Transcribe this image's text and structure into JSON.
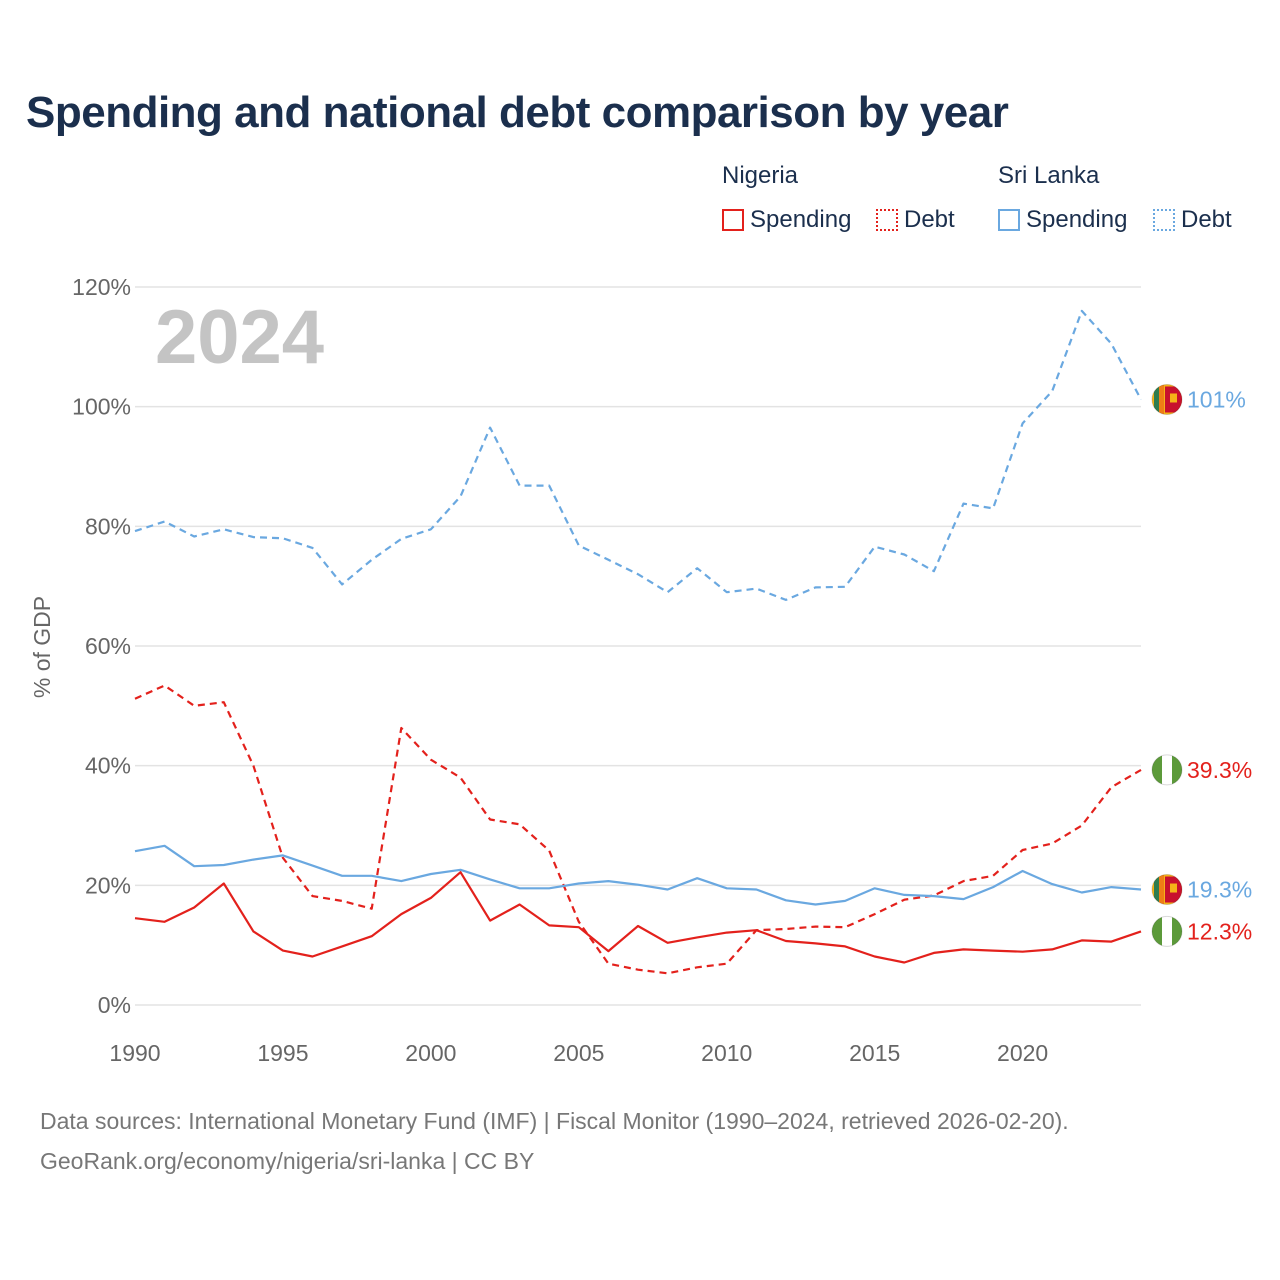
{
  "chart_data": {
    "type": "line",
    "title": "Spending and national debt comparison by year",
    "year_badge": "2024",
    "ylabel": "% of GDP",
    "xlabel": "",
    "xlim": [
      1990,
      2024
    ],
    "ylim": [
      0,
      120
    ],
    "x_ticks": [
      1990,
      1995,
      2000,
      2005,
      2010,
      2015,
      2020
    ],
    "y_ticks": [
      0,
      20,
      40,
      60,
      80,
      100,
      120
    ],
    "y_tick_labels": [
      "0%",
      "20%",
      "40%",
      "60%",
      "80%",
      "100%",
      "120%"
    ],
    "grid": true,
    "legend": {
      "groups": [
        {
          "title": "Nigeria",
          "items": [
            {
              "label": "Spending",
              "style": "solid"
            },
            {
              "label": "Debt",
              "style": "dotted"
            }
          ]
        },
        {
          "title": "Sri Lanka",
          "items": [
            {
              "label": "Spending",
              "style": "solid"
            },
            {
              "label": "Debt",
              "style": "dotted"
            }
          ]
        }
      ]
    },
    "x": [
      1990,
      1991,
      1992,
      1993,
      1994,
      1995,
      1996,
      1997,
      1998,
      1999,
      2000,
      2001,
      2002,
      2003,
      2004,
      2005,
      2006,
      2007,
      2008,
      2009,
      2010,
      2011,
      2012,
      2013,
      2014,
      2015,
      2016,
      2017,
      2018,
      2019,
      2020,
      2021,
      2022,
      2023,
      2024
    ],
    "series": [
      {
        "id": "sl-debt",
        "country": "Sri Lanka",
        "name": "Debt",
        "dash": true,
        "color": "#6aa8e0",
        "end_label": "101%",
        "flag": "sri-lanka",
        "values": [
          79.2,
          80.8,
          78.3,
          79.5,
          78.2,
          78.0,
          76.4,
          70.3,
          74.4,
          77.9,
          79.5,
          85.0,
          96.5,
          86.8,
          86.8,
          76.8,
          74.4,
          72.0,
          69.0,
          73.0,
          69.0,
          69.6,
          67.7,
          69.8,
          69.9,
          76.6,
          75.3,
          72.5,
          83.8,
          83.0,
          97.2,
          102.6,
          116.0,
          110.5,
          101.2
        ]
      },
      {
        "id": "ng-debt",
        "country": "Nigeria",
        "name": "Debt",
        "dash": true,
        "color": "#e3211c",
        "end_label": "39.3%",
        "flag": "nigeria",
        "values": [
          51.2,
          53.4,
          50.0,
          50.6,
          40.0,
          24.6,
          18.2,
          17.4,
          16.1,
          46.3,
          41.0,
          38.0,
          31.0,
          30.2,
          25.8,
          13.9,
          6.9,
          5.9,
          5.3,
          6.3,
          6.9,
          12.5,
          12.7,
          13.1,
          13.0,
          15.2,
          17.6,
          18.3,
          20.7,
          21.6,
          25.9,
          27.0,
          30.0,
          36.4,
          39.3
        ]
      },
      {
        "id": "sl-spending",
        "country": "Sri Lanka",
        "name": "Spending",
        "dash": false,
        "color": "#6aa8e0",
        "end_label": "19.3%",
        "flag": "sri-lanka",
        "values": [
          25.7,
          26.6,
          23.2,
          23.4,
          24.3,
          25.0,
          23.3,
          21.6,
          21.6,
          20.7,
          21.9,
          22.6,
          21.0,
          19.5,
          19.5,
          20.3,
          20.7,
          20.1,
          19.3,
          21.2,
          19.5,
          19.3,
          17.5,
          16.8,
          17.4,
          19.5,
          18.4,
          18.2,
          17.7,
          19.7,
          22.4,
          20.2,
          18.8,
          19.7,
          19.3
        ]
      },
      {
        "id": "ng-spending",
        "country": "Nigeria",
        "name": "Spending",
        "dash": false,
        "color": "#e3211c",
        "end_label": "12.3%",
        "flag": "nigeria",
        "values": [
          14.5,
          13.9,
          16.3,
          20.3,
          12.3,
          9.1,
          8.1,
          9.8,
          11.5,
          15.2,
          17.9,
          22.2,
          14.1,
          16.8,
          13.3,
          13.0,
          9.0,
          13.2,
          10.4,
          11.3,
          12.1,
          12.5,
          10.7,
          10.3,
          9.8,
          8.1,
          7.1,
          8.7,
          9.3,
          9.1,
          8.9,
          9.3,
          10.8,
          10.6,
          12.3
        ]
      }
    ],
    "colors": {
      "nigeria": "#e3211c",
      "sri_lanka": "#6aa8e0",
      "grid": "#e3e3e3",
      "tick_text": "#666666",
      "badge": "#c4c4c4"
    }
  },
  "footer": {
    "sources": "Data sources: International Monetary Fund (IMF) | Fiscal Monitor (1990–2024, retrieved 2026-02-20).",
    "attribution": "GeoRank.org/economy/nigeria/sri-lanka | CC BY"
  }
}
